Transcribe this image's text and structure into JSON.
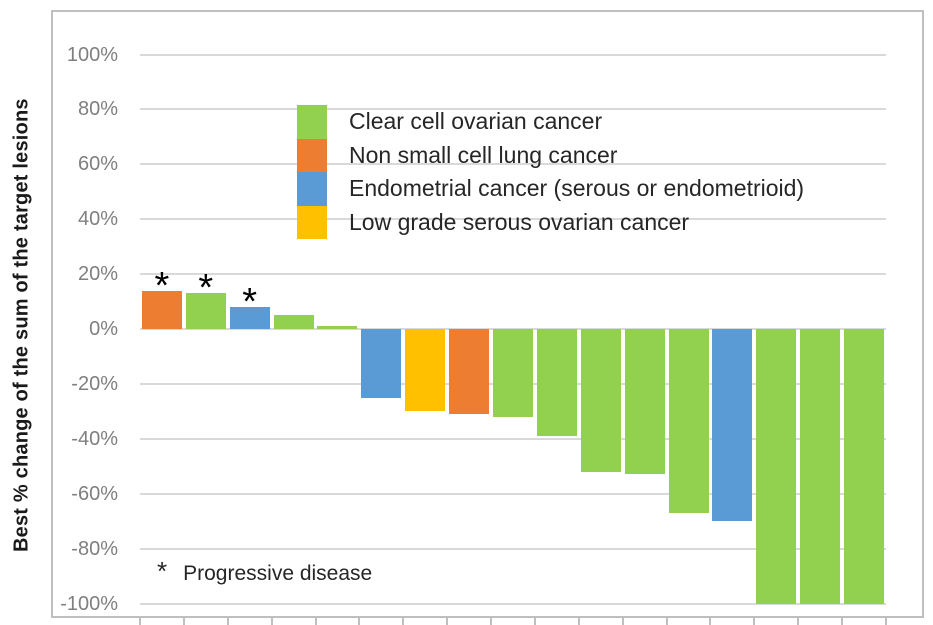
{
  "figure": {
    "background": "#ffffff",
    "border_color": "#bfbfbf"
  },
  "chart_data": {
    "type": "bar",
    "subtype": "waterfall",
    "title": "",
    "ylabel": "Best % change of the sum of the target lesions",
    "ylim": [
      -100,
      100
    ],
    "ytick_step": 20,
    "grid": true,
    "y_ticks": [
      {
        "value": 100,
        "label": "100%"
      },
      {
        "value": 80,
        "label": "80%"
      },
      {
        "value": 60,
        "label": "60%"
      },
      {
        "value": 40,
        "label": "40%"
      },
      {
        "value": 20,
        "label": "20%"
      },
      {
        "value": 0,
        "label": "0%"
      },
      {
        "value": -20,
        "label": "-20%"
      },
      {
        "value": -40,
        "label": "-40%"
      },
      {
        "value": -60,
        "label": "-60%"
      },
      {
        "value": -80,
        "label": "-80%"
      },
      {
        "value": -100,
        "label": "-100%"
      }
    ],
    "legend_position": "upper-center",
    "legend": [
      {
        "label": "Clear cell ovarian cancer",
        "color": "#92d050"
      },
      {
        "label": "Non small cell lung cancer",
        "color": "#ed7d31"
      },
      {
        "label": "Endometrial cancer (serous or endometrioid)",
        "color": "#5b9bd5"
      },
      {
        "label": "Low grade serous ovarian cancer",
        "color": "#ffc000"
      }
    ],
    "bars": [
      {
        "value": 14,
        "group": "Non small cell lung cancer",
        "color": "#ed7d31",
        "progressive_disease": true
      },
      {
        "value": 13,
        "group": "Clear cell ovarian cancer",
        "color": "#92d050",
        "progressive_disease": true
      },
      {
        "value": 8,
        "group": "Endometrial cancer (serous or endometrioid)",
        "color": "#5b9bd5",
        "progressive_disease": true
      },
      {
        "value": 5,
        "group": "Clear cell ovarian cancer",
        "color": "#92d050",
        "progressive_disease": false
      },
      {
        "value": 1,
        "group": "Clear cell ovarian cancer",
        "color": "#92d050",
        "progressive_disease": false
      },
      {
        "value": -25,
        "group": "Endometrial cancer (serous or endometrioid)",
        "color": "#5b9bd5",
        "progressive_disease": false
      },
      {
        "value": -30,
        "group": "Low grade serous ovarian cancer",
        "color": "#ffc000",
        "progressive_disease": false
      },
      {
        "value": -31,
        "group": "Non small cell lung cancer",
        "color": "#ed7d31",
        "progressive_disease": false
      },
      {
        "value": -32,
        "group": "Clear cell ovarian cancer",
        "color": "#92d050",
        "progressive_disease": false
      },
      {
        "value": -39,
        "group": "Clear cell ovarian cancer",
        "color": "#92d050",
        "progressive_disease": false
      },
      {
        "value": -52,
        "group": "Clear cell ovarian cancer",
        "color": "#92d050",
        "progressive_disease": false
      },
      {
        "value": -53,
        "group": "Clear cell ovarian cancer",
        "color": "#92d050",
        "progressive_disease": false
      },
      {
        "value": -67,
        "group": "Clear cell ovarian cancer",
        "color": "#92d050",
        "progressive_disease": false
      },
      {
        "value": -70,
        "group": "Endometrial cancer (serous or endometrioid)",
        "color": "#5b9bd5",
        "progressive_disease": false
      },
      {
        "value": -100,
        "group": "Clear cell ovarian cancer",
        "color": "#92d050",
        "progressive_disease": false
      },
      {
        "value": -100,
        "group": "Clear cell ovarian cancer",
        "color": "#92d050",
        "progressive_disease": false
      },
      {
        "value": -100,
        "group": "Clear cell ovarian cancer",
        "color": "#92d050",
        "progressive_disease": false
      }
    ],
    "pd_marker": "*",
    "footnote": {
      "marker": "*",
      "text": "Progressive disease"
    },
    "colors": {
      "grid": "#d9d9d9",
      "axis_tick": "#bfbfbf",
      "tick_label": "#7f7f7f",
      "text": "#262626"
    }
  }
}
